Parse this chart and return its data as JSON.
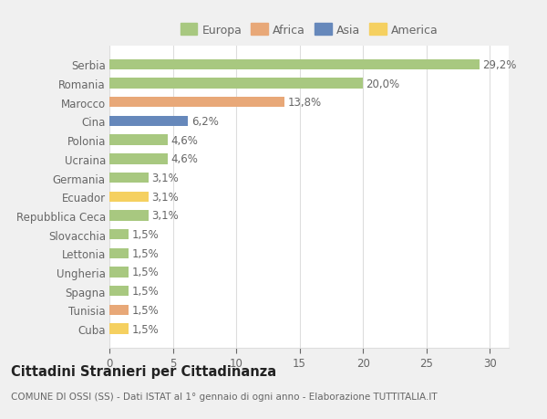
{
  "categories": [
    "Cuba",
    "Tunisia",
    "Spagna",
    "Ungheria",
    "Lettonia",
    "Slovacchia",
    "Repubblica Ceca",
    "Ecuador",
    "Germania",
    "Ucraina",
    "Polonia",
    "Cina",
    "Marocco",
    "Romania",
    "Serbia"
  ],
  "values": [
    1.5,
    1.5,
    1.5,
    1.5,
    1.5,
    1.5,
    3.1,
    3.1,
    3.1,
    4.6,
    4.6,
    6.2,
    13.8,
    20.0,
    29.2
  ],
  "colors": [
    "#f5d060",
    "#e8a878",
    "#a8c880",
    "#a8c880",
    "#a8c880",
    "#a8c880",
    "#a8c880",
    "#f5d060",
    "#a8c880",
    "#a8c880",
    "#a8c880",
    "#6688bb",
    "#e8a878",
    "#a8c880",
    "#a8c880"
  ],
  "labels": [
    "1,5%",
    "1,5%",
    "1,5%",
    "1,5%",
    "1,5%",
    "1,5%",
    "3,1%",
    "3,1%",
    "3,1%",
    "4,6%",
    "4,6%",
    "6,2%",
    "13,8%",
    "20,0%",
    "29,2%"
  ],
  "legend_labels": [
    "Europa",
    "Africa",
    "Asia",
    "America"
  ],
  "legend_colors": [
    "#a8c880",
    "#e8a878",
    "#6688bb",
    "#f5d060"
  ],
  "title": "Cittadini Stranieri per Cittadinanza",
  "subtitle": "COMUNE DI OSSI (SS) - Dati ISTAT al 1° gennaio di ogni anno - Elaborazione TUTTITALIA.IT",
  "xlim": [
    0,
    31.5
  ],
  "xticks": [
    0,
    5,
    10,
    15,
    20,
    25,
    30
  ],
  "figure_bg": "#f0f0f0",
  "axes_bg": "#ffffff",
  "grid_color": "#dddddd",
  "text_color": "#666666",
  "bar_height": 0.55,
  "label_fontsize": 8.5,
  "ytick_fontsize": 8.5,
  "xtick_fontsize": 8.5,
  "title_fontsize": 10.5,
  "subtitle_fontsize": 7.5,
  "legend_fontsize": 9
}
